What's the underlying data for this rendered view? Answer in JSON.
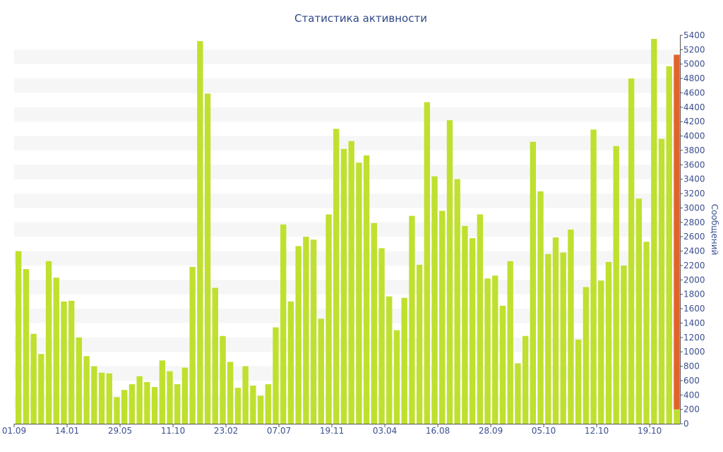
{
  "chart_data": {
    "type": "bar",
    "title": "Статистика активности",
    "ylabel": "Сообщений",
    "y_axis_side": "right",
    "ylim": [
      0,
      5400
    ],
    "y_ticks": [
      0,
      200,
      400,
      600,
      800,
      1000,
      1200,
      1400,
      1600,
      1800,
      2000,
      2200,
      2400,
      2600,
      2800,
      3000,
      3200,
      3400,
      3600,
      3800,
      4000,
      4200,
      4400,
      4600,
      4800,
      5000,
      5200,
      5400
    ],
    "x_tick_labels": [
      {
        "index": 0,
        "label": "01.09"
      },
      {
        "index": 7,
        "label": "14.01"
      },
      {
        "index": 14,
        "label": "29.05"
      },
      {
        "index": 21,
        "label": "11.10"
      },
      {
        "index": 28,
        "label": "23.02"
      },
      {
        "index": 35,
        "label": "07.07"
      },
      {
        "index": 42,
        "label": "19.11"
      },
      {
        "index": 49,
        "label": "03.04"
      },
      {
        "index": 56,
        "label": "16.08"
      },
      {
        "index": 63,
        "label": "28.09"
      },
      {
        "index": 70,
        "label": "05.10"
      },
      {
        "index": 77,
        "label": "12.10"
      },
      {
        "index": 84,
        "label": "19.10"
      }
    ],
    "grid": "horizontal bands",
    "series": [
      {
        "color": "#bfe02e",
        "values": [
          2400,
          2150,
          1250,
          970,
          2260,
          2030,
          1700,
          1710,
          1200,
          940,
          800,
          710,
          700,
          370,
          470,
          550,
          660,
          580,
          510,
          880,
          730,
          550,
          780,
          2180,
          5320,
          4590,
          1890,
          1220,
          860,
          500,
          800,
          530,
          390,
          550,
          1340,
          2770,
          1700,
          2470,
          2600,
          2560,
          1460,
          2910,
          4100,
          3820,
          3930,
          3630,
          3730,
          2790,
          2440,
          1770,
          1300,
          1750,
          2890,
          2210,
          4470,
          3440,
          2960,
          4220,
          3400,
          2750,
          2580,
          2910,
          2020,
          2060,
          1640,
          2260,
          840,
          1220,
          3920,
          3230,
          2360,
          2590,
          2380,
          2700,
          1170,
          1900,
          4090,
          1990,
          2250,
          3860,
          2200,
          4800,
          3130,
          2530,
          5350,
          3960,
          4970,
          200
        ]
      },
      {
        "color": "#e2622c",
        "values": [
          0,
          0,
          0,
          0,
          0,
          0,
          0,
          0,
          0,
          0,
          0,
          0,
          0,
          0,
          0,
          0,
          0,
          0,
          0,
          0,
          0,
          0,
          0,
          0,
          0,
          0,
          0,
          0,
          0,
          0,
          0,
          0,
          0,
          0,
          0,
          0,
          0,
          0,
          0,
          0,
          0,
          0,
          0,
          0,
          0,
          0,
          0,
          0,
          0,
          0,
          0,
          0,
          0,
          0,
          0,
          0,
          0,
          0,
          0,
          0,
          0,
          0,
          0,
          0,
          0,
          0,
          0,
          0,
          0,
          0,
          0,
          0,
          0,
          0,
          0,
          0,
          0,
          0,
          0,
          0,
          0,
          0,
          0,
          0,
          0,
          0,
          0,
          4930
        ]
      }
    ]
  },
  "colors": {
    "title": "#2f4887",
    "tick_text": "#3b4f8f",
    "band": "#f6f6f6",
    "axis": "#555555"
  }
}
